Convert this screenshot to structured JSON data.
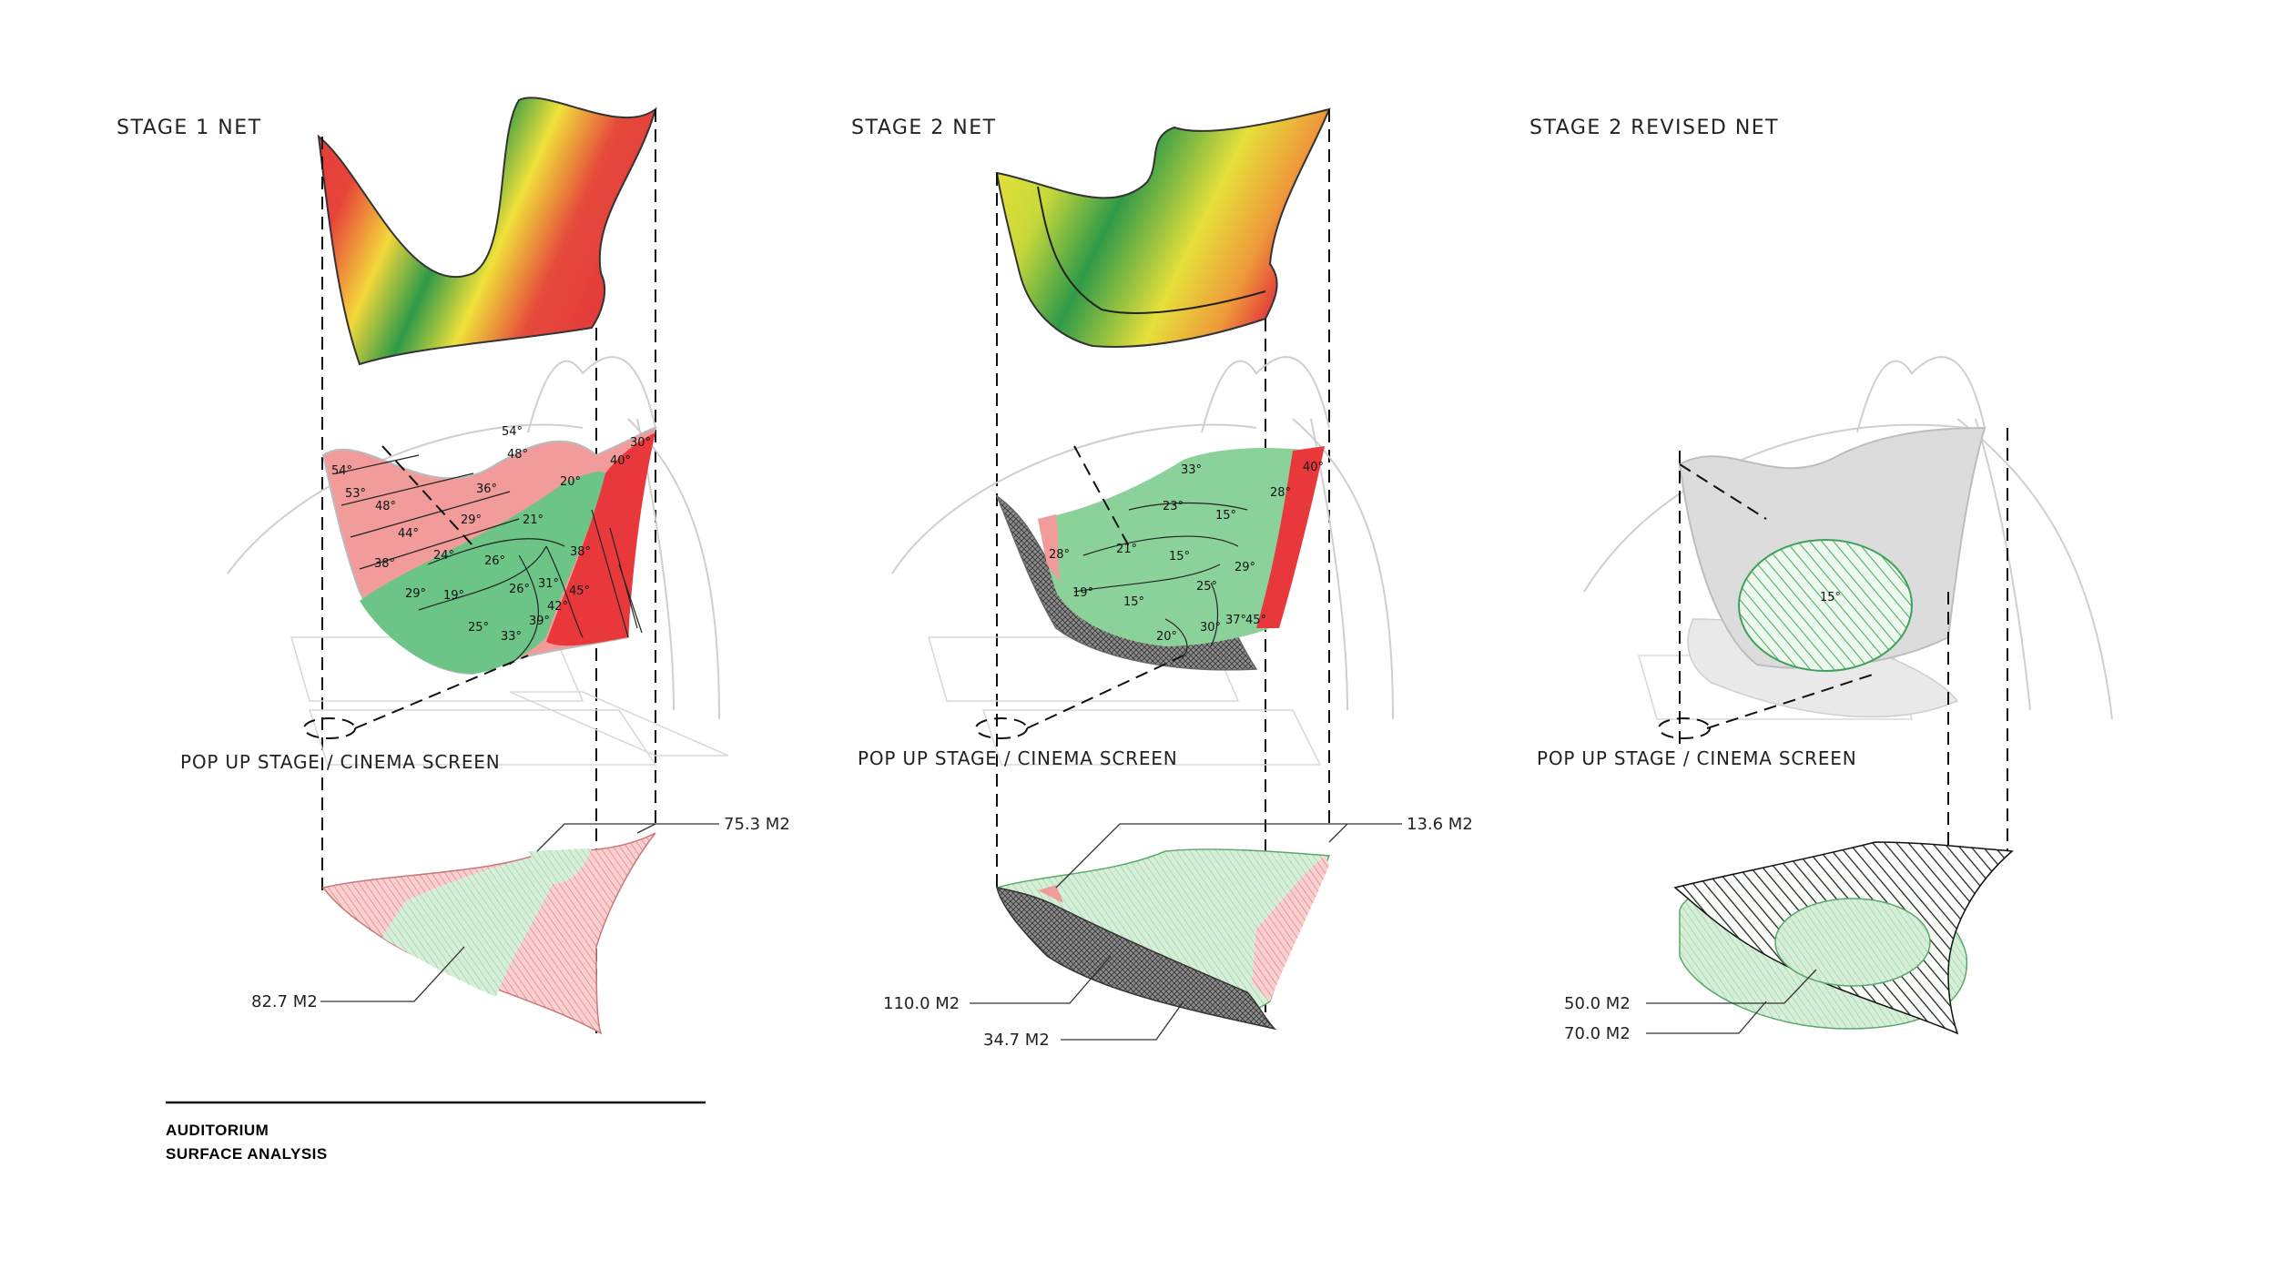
{
  "columns": [
    {
      "title": "STAGE 1 NET",
      "stage_label": "POP UP STAGE / CINEMA SCREEN",
      "areas": [
        "75.3 M2",
        "82.7 M2"
      ],
      "angles": [
        "54°",
        "48°",
        "36°",
        "20°",
        "54°",
        "53°",
        "48°",
        "44°",
        "29°",
        "21°",
        "38°",
        "24°",
        "26°",
        "29°",
        "19°",
        "25°",
        "33°",
        "26°",
        "31°",
        "39°",
        "42°",
        "38°",
        "45°",
        "40°",
        "30°"
      ]
    },
    {
      "title": "STAGE 2 NET",
      "stage_label": "POP UP STAGE / CINEMA SCREEN",
      "areas": [
        "13.6 M2",
        "110.0 M2",
        "34.7 M2"
      ],
      "angles": [
        "33°",
        "23°",
        "15°",
        "28°",
        "21°",
        "15°",
        "29°",
        "19°",
        "15°",
        "25°",
        "20°",
        "30°",
        "37°",
        "45°",
        "28°",
        "40°"
      ]
    },
    {
      "title": "STAGE 2  REVISED NET",
      "stage_label": "POP UP STAGE / CINEMA SCREEN",
      "areas": [
        "50.0 M2",
        "70.0 M2"
      ],
      "angles": [
        "15°"
      ]
    }
  ],
  "caption": {
    "line1": "AUDITORIUM",
    "line2": "SURFACE ANALYSIS"
  },
  "colors": {
    "red": "#e8383c",
    "yellow": "#f2e437",
    "green": "#2f9e4a",
    "pink": "#f19b9b",
    "mint": "#a8ddb0",
    "dark": "#555555"
  }
}
